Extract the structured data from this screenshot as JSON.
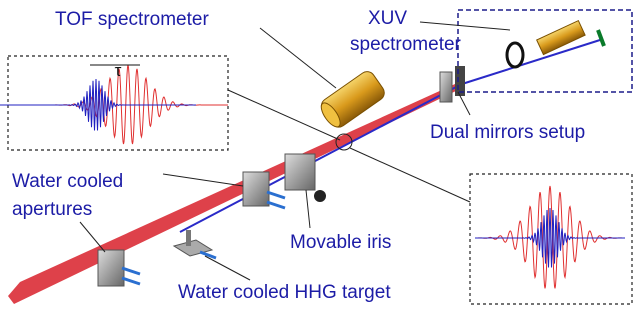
{
  "labels": {
    "tof": [
      "TOF spectrometer"
    ],
    "xuv": [
      "XUV",
      "spectrometer"
    ],
    "mirrors": [
      "Dual mirrors setup"
    ],
    "apertures": [
      "Water cooled",
      "apertures"
    ],
    "iris": [
      "Movable iris"
    ],
    "target": [
      "Water cooled HHG target"
    ],
    "delay": "τ"
  }
}
